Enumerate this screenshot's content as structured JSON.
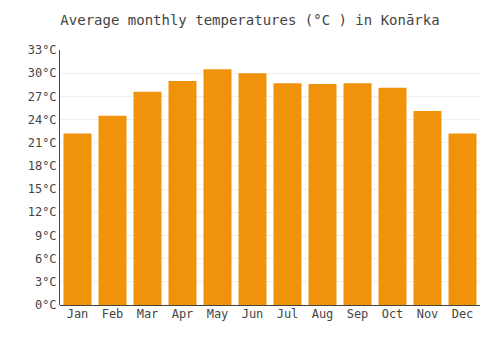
{
  "chart_data": {
    "type": "bar",
    "title": "Average monthly temperatures (°C ) in Konārka",
    "categories": [
      "Jan",
      "Feb",
      "Mar",
      "Apr",
      "May",
      "Jun",
      "Jul",
      "Aug",
      "Sep",
      "Oct",
      "Nov",
      "Dec"
    ],
    "values": [
      22.2,
      24.5,
      27.6,
      29.0,
      30.5,
      30.0,
      28.7,
      28.6,
      28.7,
      28.1,
      25.1,
      22.2
    ],
    "color": "#F0930A",
    "ylim": [
      0,
      33
    ],
    "yticks": [
      {
        "value": 0,
        "label": "0°C"
      },
      {
        "value": 3,
        "label": "3°C"
      },
      {
        "value": 6,
        "label": "6°C"
      },
      {
        "value": 9,
        "label": "9°C"
      },
      {
        "value": 12,
        "label": "12°C"
      },
      {
        "value": 15,
        "label": "15°C"
      },
      {
        "value": 18,
        "label": "18°C"
      },
      {
        "value": 21,
        "label": "21°C"
      },
      {
        "value": 24,
        "label": "24°C"
      },
      {
        "value": 27,
        "label": "27°C"
      },
      {
        "value": 30,
        "label": "30°C"
      },
      {
        "value": 33,
        "label": "33°C"
      }
    ],
    "grid": true
  }
}
